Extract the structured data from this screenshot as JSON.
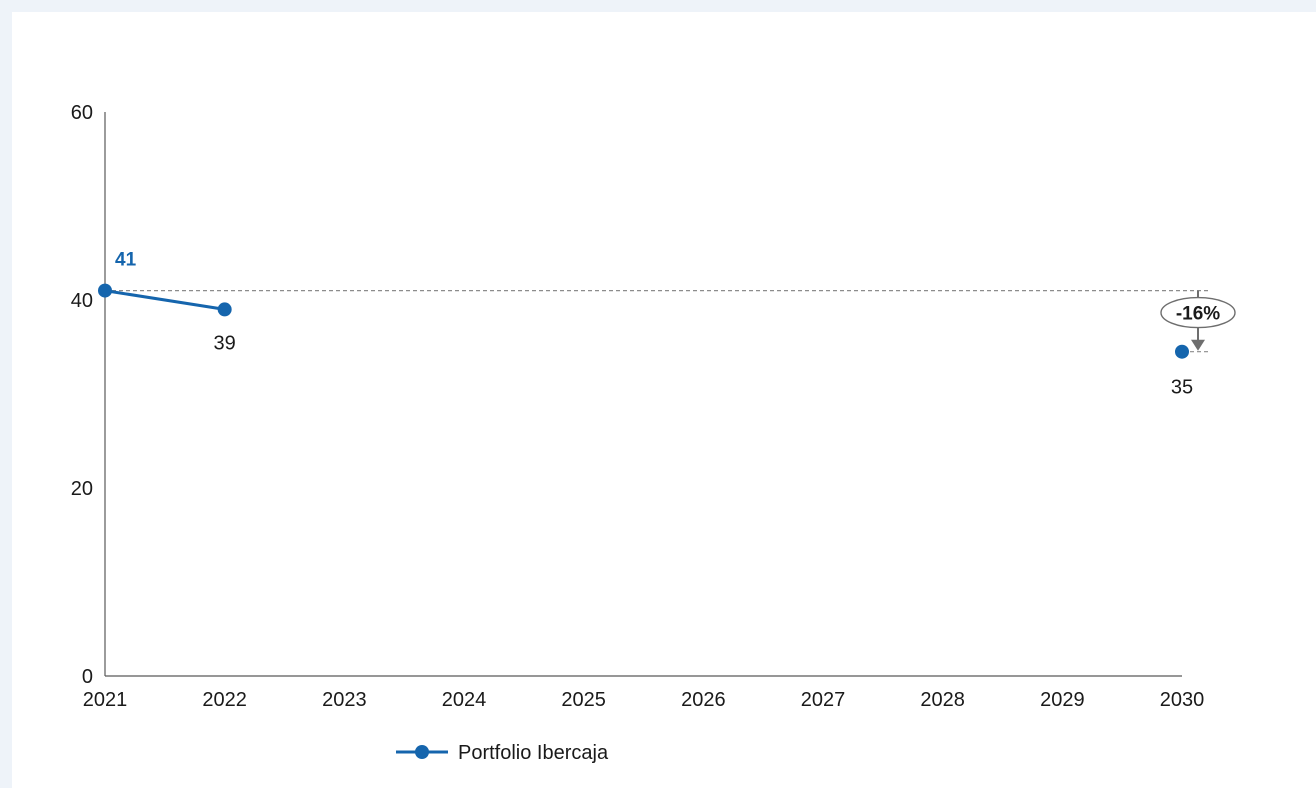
{
  "chart_data": {
    "type": "line",
    "title": "",
    "xlabel": "",
    "ylabel": "",
    "categories": [
      "2021",
      "2022",
      "2023",
      "2024",
      "2025",
      "2026",
      "2027",
      "2028",
      "2029",
      "2030"
    ],
    "ylim": [
      0,
      60
    ],
    "yticks": [
      "0",
      "20",
      "40",
      "60"
    ],
    "grid": false,
    "series": [
      {
        "name": "Portfolio Ibercaja",
        "color": "#1565ad",
        "points": [
          {
            "x": "2021",
            "y": 41,
            "label": "41"
          },
          {
            "x": "2022",
            "y": 39,
            "label": "39"
          }
        ]
      }
    ],
    "target": {
      "x": "2030",
      "y": 34.5,
      "label": "35",
      "color": "#1565ad"
    },
    "reference_line": {
      "y": 41,
      "style": "dashed",
      "color": "#8c8c8c"
    },
    "annotation": {
      "text": "-16%",
      "x": "2030"
    },
    "legend": {
      "position": "bottom",
      "entries": [
        "Portfolio Ibercaja"
      ]
    }
  }
}
